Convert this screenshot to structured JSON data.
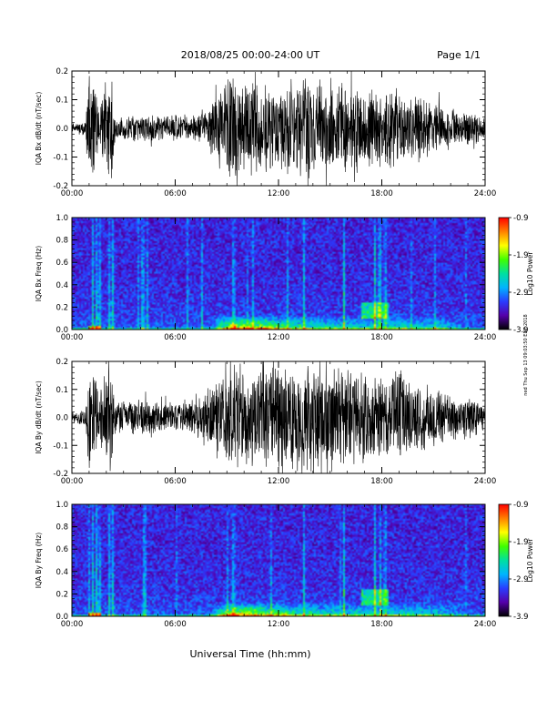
{
  "header": {
    "title": "2018/08/25  00:00-24:00 UT",
    "page": "Page 1/1"
  },
  "side_note": "ned Thu Sep 13 09:03:50 EDT 2018",
  "colors": {
    "background": "#ffffff",
    "trace": "#000000",
    "colormap": [
      "#000000",
      "#5500aa",
      "#2a3cff",
      "#00b4ff",
      "#00e0a0",
      "#40ff00",
      "#ffff00",
      "#ff8000",
      "#ff0000"
    ]
  },
  "chart_data": [
    {
      "type": "line",
      "name": "Bx waveform",
      "ylabel": "IQA Bx dB/dt (nT/sec)",
      "xlim": [
        0,
        24
      ],
      "ylim": [
        -0.2,
        0.2
      ],
      "xticks": [
        "00:00",
        "06:00",
        "12:00",
        "18:00",
        "24:00"
      ],
      "yticks": [
        "-0.2",
        "-0.1",
        "0.0",
        "0.1",
        "0.2"
      ],
      "amplitude_profile": {
        "hours": [
          0,
          0.8,
          1.0,
          1.3,
          1.6,
          1.9,
          2.3,
          2.5,
          3,
          4,
          5,
          6,
          7,
          7.8,
          8.2,
          9,
          9.5,
          10,
          11,
          12,
          13,
          14,
          15,
          16,
          17,
          18,
          19,
          20,
          21,
          22,
          23,
          24
        ],
        "amplitude": [
          0.015,
          0.03,
          0.2,
          0.2,
          0.06,
          0.2,
          0.2,
          0.04,
          0.04,
          0.045,
          0.05,
          0.05,
          0.05,
          0.06,
          0.13,
          0.2,
          0.2,
          0.2,
          0.16,
          0.18,
          0.18,
          0.2,
          0.2,
          0.17,
          0.16,
          0.15,
          0.15,
          0.13,
          0.1,
          0.08,
          0.07,
          0.05
        ]
      }
    },
    {
      "type": "heatmap",
      "name": "Bx spectrogram",
      "ylabel": "IQA Bx Freq (Hz)",
      "xlim": [
        0,
        24
      ],
      "ylim": [
        0,
        1.0
      ],
      "xticks": [
        "00:00",
        "06:00",
        "12:00",
        "18:00",
        "24:00"
      ],
      "yticks": [
        "0.0",
        "0.2",
        "0.4",
        "0.6",
        "0.8",
        "1.0"
      ],
      "colorbar": {
        "label": "Log10 Power",
        "range": [
          -3.9,
          -0.9
        ],
        "ticks": [
          "-3.9",
          "-2.9",
          "-1.9",
          "-0.9"
        ]
      },
      "bright_columns_hours": [
        1.2,
        1.45,
        1.6,
        2.2,
        2.4,
        9.4,
        13.5,
        15.8,
        17.6,
        17.9,
        18.2
      ],
      "enhanced_band": {
        "start_hour": 8,
        "end_hour": 23,
        "peak_hour": 9.5,
        "max_freq_hz": 0.1
      },
      "feature_patch": {
        "start_hour": 16.8,
        "end_hour": 18.4,
        "low_freq_hz": 0.1,
        "high_freq_hz": 0.24
      }
    },
    {
      "type": "line",
      "name": "By waveform",
      "ylabel": "IQA By dB/dt (nT/sec)",
      "xlim": [
        0,
        24
      ],
      "ylim": [
        -0.2,
        0.2
      ],
      "xticks": [
        "00:00",
        "06:00",
        "12:00",
        "18:00",
        "24:00"
      ],
      "yticks": [
        "-0.2",
        "-0.1",
        "0.0",
        "0.1",
        "0.2"
      ],
      "amplitude_profile": {
        "hours": [
          0,
          0.8,
          1.0,
          1.3,
          1.6,
          1.9,
          2.3,
          2.5,
          3,
          4,
          5,
          6,
          7,
          7.8,
          8.2,
          9,
          9.5,
          10,
          11,
          12,
          13,
          14,
          15,
          16,
          17,
          18,
          19,
          20,
          21,
          22,
          23,
          24
        ],
        "amplitude": [
          0.02,
          0.04,
          0.2,
          0.2,
          0.08,
          0.2,
          0.2,
          0.06,
          0.06,
          0.07,
          0.06,
          0.06,
          0.07,
          0.09,
          0.15,
          0.2,
          0.2,
          0.2,
          0.18,
          0.2,
          0.2,
          0.2,
          0.2,
          0.2,
          0.2,
          0.17,
          0.18,
          0.15,
          0.12,
          0.09,
          0.08,
          0.06
        ]
      }
    },
    {
      "type": "heatmap",
      "name": "By spectrogram",
      "ylabel": "IQA By Freq (Hz)",
      "xlim": [
        0,
        24
      ],
      "ylim": [
        0,
        1.0
      ],
      "xticks": [
        "00:00",
        "06:00",
        "12:00",
        "18:00",
        "24:00"
      ],
      "yticks": [
        "0.0",
        "0.2",
        "0.4",
        "0.6",
        "0.8",
        "1.0"
      ],
      "colorbar": {
        "label": "Log10 Power",
        "range": [
          -3.9,
          -0.9
        ],
        "ticks": [
          "-3.9",
          "-2.9",
          "-1.9",
          "-0.9"
        ]
      },
      "bright_columns_hours": [
        1.2,
        1.45,
        1.6,
        2.2,
        2.4,
        9.4,
        13.5,
        15.8,
        17.6,
        17.9,
        18.2
      ],
      "enhanced_band": {
        "start_hour": 8,
        "end_hour": 23,
        "peak_hour": 9.5,
        "max_freq_hz": 0.1
      },
      "feature_patch": {
        "start_hour": 16.8,
        "end_hour": 18.4,
        "low_freq_hz": 0.1,
        "high_freq_hz": 0.24
      }
    }
  ],
  "xaxis": {
    "label": "Universal Time (hh:mm)"
  }
}
